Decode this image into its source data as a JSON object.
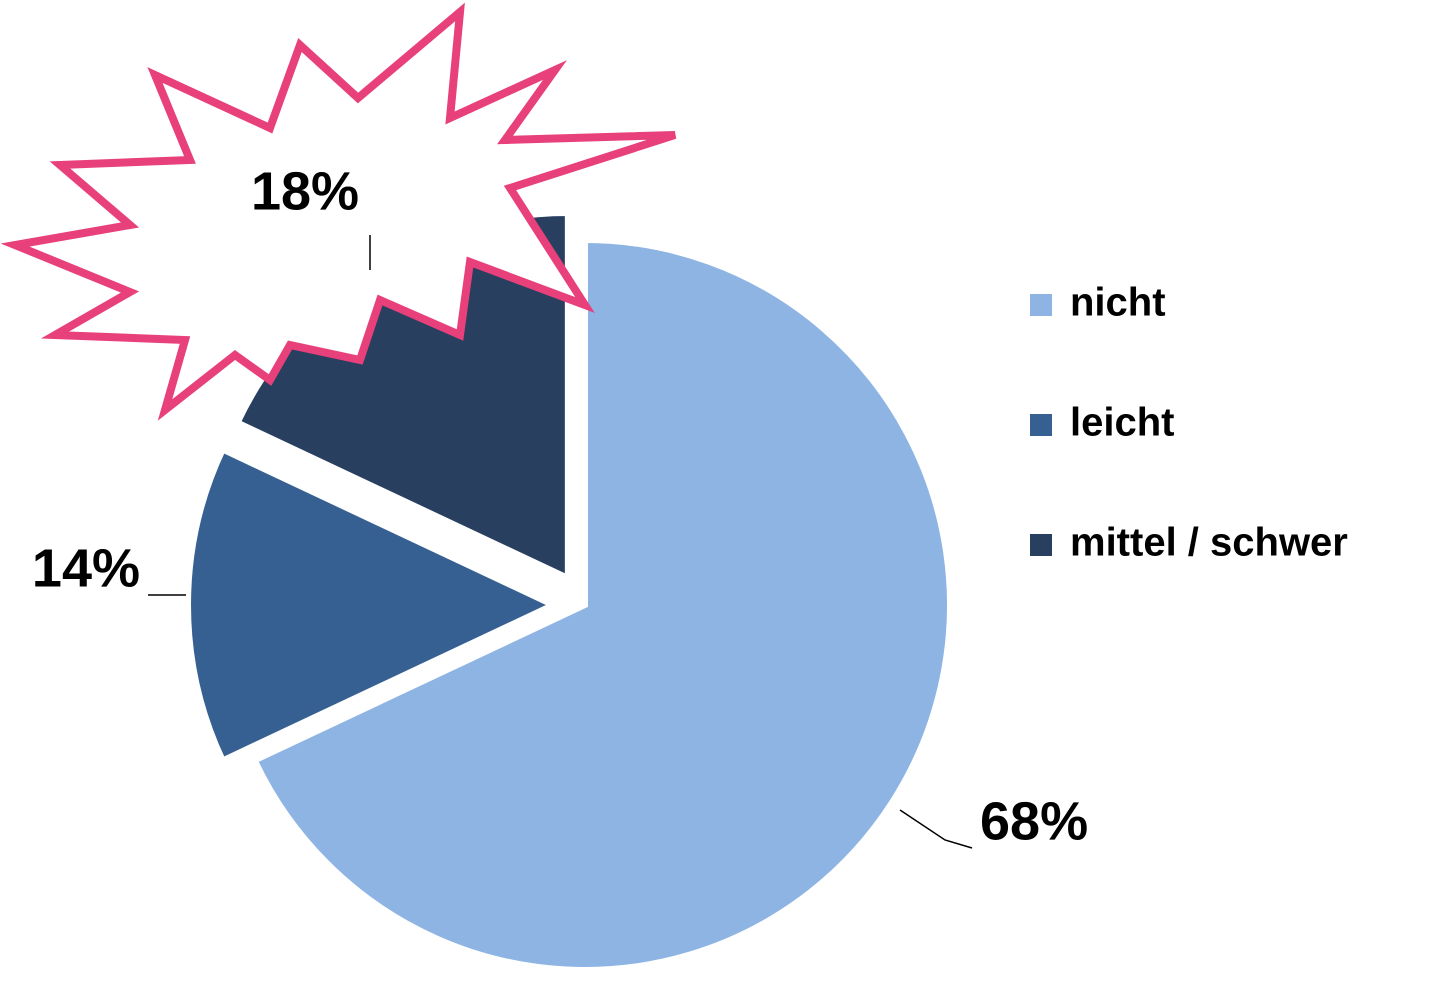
{
  "chart_data": {
    "type": "pie",
    "categories": [
      "nicht",
      "leicht",
      "mittel / schwer"
    ],
    "values": [
      68,
      14,
      18
    ],
    "value_labels": [
      "68%",
      "14%",
      "18%"
    ],
    "colors": [
      "#8eb4e3",
      "#376092",
      "#283f60"
    ],
    "legend": "right"
  }
}
